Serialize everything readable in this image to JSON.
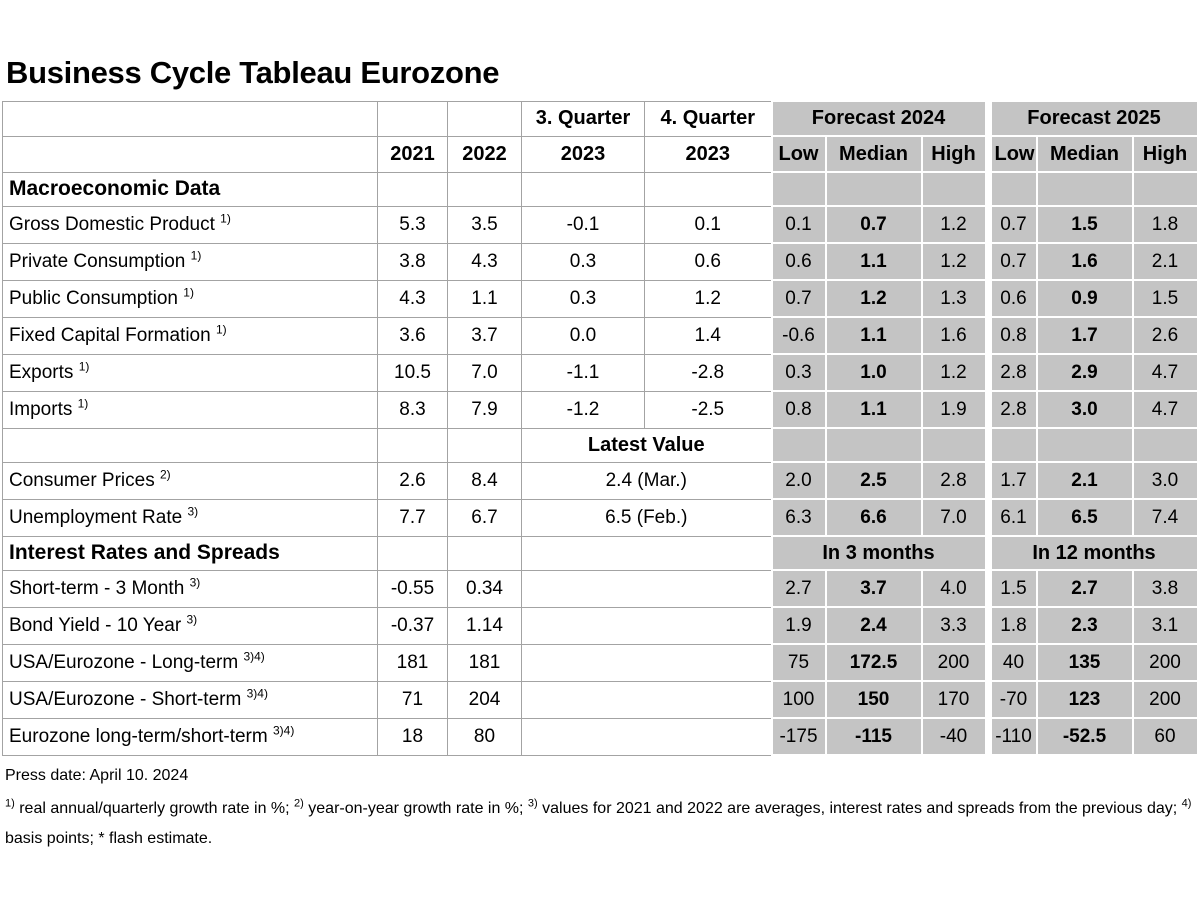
{
  "title": "Business Cycle Tableau Eurozone",
  "colors": {
    "cell_gray": "#c4c4c4",
    "grid_line": "#a3a3a3",
    "text": "#000000",
    "background": "#ffffff"
  },
  "header": {
    "q3_title": "3. Quarter",
    "q4_title": "4. Quarter",
    "col_2021": "2021",
    "col_2022": "2022",
    "q3_year": "2023",
    "q4_year": "2023",
    "forecast_2024": "Forecast 2024",
    "forecast_2025": "Forecast 2025",
    "low": "Low",
    "median": "Median",
    "high": "High"
  },
  "rows": [
    {
      "kind": "section",
      "label": "Macroeconomic Data",
      "sup": "",
      "white": [
        "",
        "",
        "",
        ""
      ],
      "gray": [
        "",
        "",
        "",
        "",
        "",
        ""
      ]
    },
    {
      "kind": "data",
      "label": "Gross Domestic Product",
      "sup": "1)",
      "white": [
        "5.3",
        "3.5",
        "-0.1",
        "0.1"
      ],
      "gray": [
        "0.1",
        "0.7",
        "1.2",
        "0.7",
        "1.5",
        "1.8"
      ]
    },
    {
      "kind": "data",
      "label": "Private Consumption",
      "sup": "1)",
      "white": [
        "3.8",
        "4.3",
        "0.3",
        "0.6"
      ],
      "gray": [
        "0.6",
        "1.1",
        "1.2",
        "0.7",
        "1.6",
        "2.1"
      ]
    },
    {
      "kind": "data",
      "label": "Public Consumption",
      "sup": "1)",
      "white": [
        "4.3",
        "1.1",
        "0.3",
        "1.2"
      ],
      "gray": [
        "0.7",
        "1.2",
        "1.3",
        "0.6",
        "0.9",
        "1.5"
      ]
    },
    {
      "kind": "data",
      "label": "Fixed Capital Formation",
      "sup": "1)",
      "white": [
        "3.6",
        "3.7",
        "0.0",
        "1.4"
      ],
      "gray": [
        "-0.6",
        "1.1",
        "1.6",
        "0.8",
        "1.7",
        "2.6"
      ]
    },
    {
      "kind": "data",
      "label": "Exports",
      "sup": "1)",
      "white": [
        "10.5",
        "7.0",
        "-1.1",
        "-2.8"
      ],
      "gray": [
        "0.3",
        "1.0",
        "1.2",
        "2.8",
        "2.9",
        "4.7"
      ]
    },
    {
      "kind": "data",
      "label": "Imports",
      "sup": "1)",
      "white": [
        "8.3",
        "7.9",
        "-1.2",
        "-2.5"
      ],
      "gray": [
        "0.8",
        "1.1",
        "1.9",
        "2.8",
        "3.0",
        "4.7"
      ]
    },
    {
      "kind": "subheader",
      "label": "",
      "sup": "",
      "white2": [
        "",
        ""
      ],
      "merged": "Latest Value",
      "gray": [
        "",
        "",
        "",
        "",
        "",
        ""
      ]
    },
    {
      "kind": "data",
      "label": "Consumer Prices",
      "sup": "2)",
      "white2": [
        "2.6",
        "8.4"
      ],
      "merged": "2.4 (Mar.)",
      "gray": [
        "2.0",
        "2.5",
        "2.8",
        "1.7",
        "2.1",
        "3.0"
      ]
    },
    {
      "kind": "data",
      "label": "Unemployment Rate",
      "sup": "3)",
      "white2": [
        "7.7",
        "6.7"
      ],
      "merged": "6.5 (Feb.)",
      "gray": [
        "6.3",
        "6.6",
        "7.0",
        "6.1",
        "6.5",
        "7.4"
      ]
    },
    {
      "kind": "section",
      "label": "Interest Rates and Spreads",
      "sup": "",
      "white2": [
        "",
        ""
      ],
      "merged": "",
      "grayspans": [
        "In 3 months",
        "In 12 months"
      ]
    },
    {
      "kind": "data",
      "label": "Short-term - 3 Month",
      "sup": "3)",
      "white2": [
        "-0.55",
        "0.34"
      ],
      "merged": "",
      "gray": [
        "2.7",
        "3.7",
        "4.0",
        "1.5",
        "2.7",
        "3.8"
      ]
    },
    {
      "kind": "data",
      "label": "Bond Yield - 10 Year",
      "sup": "3)",
      "white2": [
        "-0.37",
        "1.14"
      ],
      "merged": "",
      "gray": [
        "1.9",
        "2.4",
        "3.3",
        "1.8",
        "2.3",
        "3.1"
      ]
    },
    {
      "kind": "data",
      "label": "USA/Eurozone - Long-term",
      "sup": "3)4)",
      "white2": [
        "181",
        "181"
      ],
      "merged": "",
      "gray": [
        "75",
        "172.5",
        "200",
        "40",
        "135",
        "200"
      ]
    },
    {
      "kind": "data",
      "label": "USA/Eurozone - Short-term",
      "sup": "3)4)",
      "white2": [
        "71",
        "204"
      ],
      "merged": "",
      "gray": [
        "100",
        "150",
        "170",
        "-70",
        "123",
        "200"
      ]
    },
    {
      "kind": "data",
      "label": "Eurozone long-term/short-term",
      "sup": "3)4)",
      "white2": [
        "18",
        "80"
      ],
      "merged": "",
      "gray": [
        "-175",
        "-115",
        "-40",
        "-110",
        "-52.5",
        "60"
      ]
    }
  ],
  "footer": {
    "press_date": "Press date: April 10. 2024",
    "footnotes": [
      {
        "sup": "1)",
        "text": "real annual/quarterly growth rate in %;"
      },
      {
        "sup": "2)",
        "text": "year-on-year growth rate in %;"
      },
      {
        "sup": "3)",
        "text": "values for 2021 and 2022 are averages, interest rates and spreads from the previous day;"
      },
      {
        "sup": "4)",
        "text": "basis points; * flash estimate."
      }
    ]
  }
}
